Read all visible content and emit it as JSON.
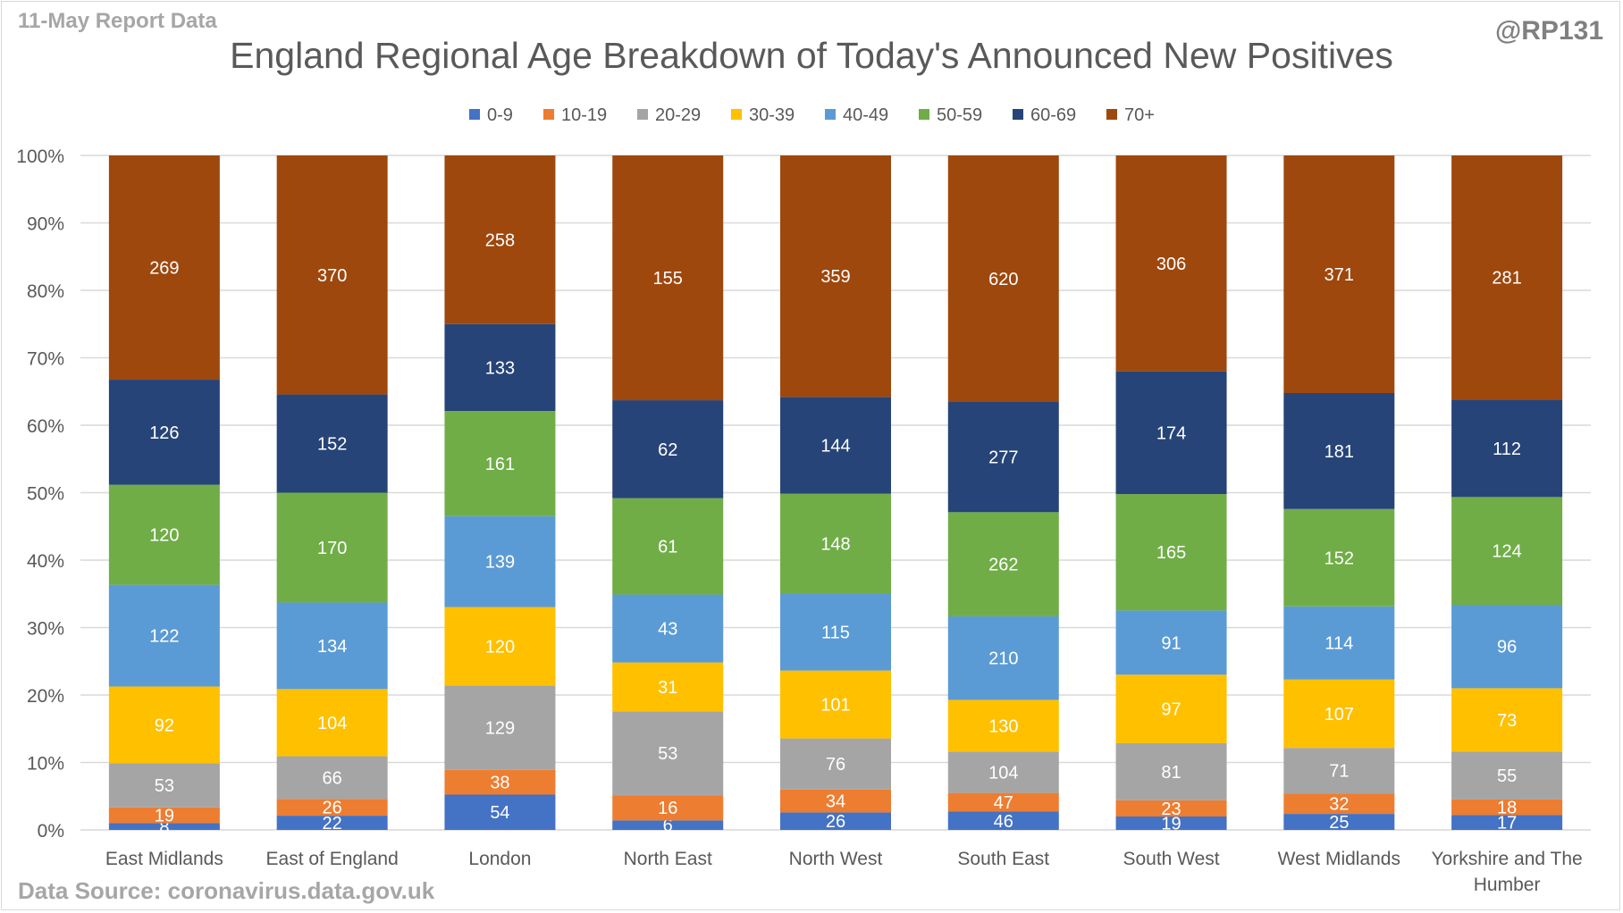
{
  "header": {
    "report_label": "11-May Report Data",
    "handle": "@RP131"
  },
  "footer": {
    "source": "Data Source: coronavirus.data.gov.uk"
  },
  "colors": {
    "0-9": "#4472c4",
    "10-19": "#ed7d31",
    "20-29": "#a5a5a5",
    "30-39": "#ffc000",
    "40-49": "#5b9bd5",
    "50-59": "#70ad47",
    "60-69": "#264478",
    "70+": "#9e480e",
    "gridline": "#d9d9d9",
    "axis_text": "#595959"
  },
  "chart_data": {
    "type": "bar",
    "stacked": "percent",
    "title": "England Regional Age Breakdown of Today's Announced New Positives",
    "xlabel": "",
    "ylabel": "",
    "ylim": [
      0,
      100
    ],
    "yticks": [
      "0%",
      "10%",
      "20%",
      "30%",
      "40%",
      "50%",
      "60%",
      "70%",
      "80%",
      "90%",
      "100%"
    ],
    "grid": true,
    "legend_position": "top",
    "categories": [
      "East Midlands",
      "East of England",
      "London",
      "North East",
      "North West",
      "South East",
      "South West",
      "West Midlands",
      "Yorkshire and The Humber"
    ],
    "series": [
      {
        "name": "0-9",
        "values": [
          8,
          22,
          54,
          6,
          26,
          46,
          19,
          25,
          17
        ]
      },
      {
        "name": "10-19",
        "values": [
          19,
          26,
          38,
          16,
          34,
          47,
          23,
          32,
          18
        ]
      },
      {
        "name": "20-29",
        "values": [
          53,
          66,
          129,
          53,
          76,
          104,
          81,
          71,
          55
        ]
      },
      {
        "name": "30-39",
        "values": [
          92,
          104,
          120,
          31,
          101,
          130,
          97,
          107,
          73
        ]
      },
      {
        "name": "40-49",
        "values": [
          122,
          134,
          139,
          43,
          115,
          210,
          91,
          114,
          96
        ]
      },
      {
        "name": "50-59",
        "values": [
          120,
          170,
          161,
          61,
          148,
          262,
          165,
          152,
          124
        ]
      },
      {
        "name": "60-69",
        "values": [
          126,
          152,
          133,
          62,
          144,
          277,
          174,
          181,
          112
        ]
      },
      {
        "name": "70+",
        "values": [
          269,
          370,
          258,
          155,
          359,
          620,
          306,
          371,
          281
        ]
      }
    ]
  }
}
